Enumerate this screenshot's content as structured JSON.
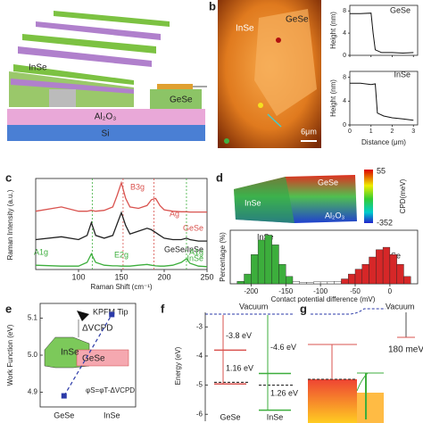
{
  "labels": {
    "b": "b",
    "c": "c",
    "d": "d",
    "e": "e",
    "f": "f",
    "g": "g"
  },
  "a": {
    "inse": "InSe",
    "gese": "GeSe",
    "al2o3": "Al₂O₃",
    "si": "Si"
  },
  "b": {
    "image": {
      "inse": "InSe",
      "gese": "GeSe",
      "scale": "6μm"
    },
    "ylabel": "Height (nm)",
    "xlabel": "Distance (μm)",
    "xlim": [
      0,
      3.2
    ],
    "xticks": [
      0,
      1,
      2,
      3
    ],
    "plots": [
      {
        "name": "GeSe",
        "x": [
          0,
          0.5,
          1.0,
          1.1,
          1.2,
          1.5,
          2,
          2.5,
          3
        ],
        "values": [
          7.5,
          7.5,
          7.6,
          4,
          1,
          0.5,
          0.5,
          0.4,
          0.5
        ],
        "ylim": [
          0,
          9
        ],
        "yticks": [
          0,
          4,
          8
        ]
      },
      {
        "name": "InSe",
        "x": [
          0,
          0.5,
          1.0,
          1.2,
          1.3,
          1.6,
          2,
          2.5,
          3
        ],
        "values": [
          7,
          7,
          6.8,
          6.9,
          2,
          1.5,
          1.2,
          1,
          0.8
        ],
        "ylim": [
          0,
          9
        ],
        "yticks": [
          0,
          4,
          8
        ]
      }
    ]
  },
  "c": {
    "ylabel": "Raman Intensity (a.u.)",
    "xlabel": "Raman Shift (cm⁻¹)",
    "xlim": [
      50,
      250
    ],
    "xticks": [
      100,
      150,
      200,
      250
    ],
    "ylim": [
      0,
      3.2
    ],
    "x": [
      50,
      80,
      100,
      110,
      115,
      120,
      130,
      140,
      145,
      150,
      155,
      160,
      170,
      180,
      185,
      190,
      195,
      200,
      210,
      220,
      226,
      230,
      240,
      250
    ],
    "series": [
      {
        "name": "GeSe",
        "color": "#d9534f",
        "values": [
          2.05,
          2.2,
          2.05,
          2.05,
          2.08,
          2.05,
          2.08,
          2.2,
          2.6,
          3.05,
          2.5,
          2.2,
          2.15,
          2.25,
          2.45,
          2.5,
          2.25,
          2.1,
          2.05,
          2.03,
          2.03,
          2.02,
          2.02,
          2.02
        ]
      },
      {
        "name": "GeSe/InSe",
        "color": "#222222",
        "values": [
          1.05,
          1.15,
          1.05,
          1.2,
          1.65,
          1.2,
          1.1,
          1.2,
          1.6,
          2.0,
          1.55,
          1.25,
          1.35,
          1.45,
          1.4,
          1.3,
          1.2,
          1.1,
          1.05,
          1.05,
          1.1,
          1.05,
          1.0,
          1.0
        ]
      },
      {
        "name": "InSe",
        "color": "#3cae3c",
        "values": [
          0.15,
          0.12,
          0.12,
          0.25,
          0.55,
          0.25,
          0.15,
          0.13,
          0.13,
          0.12,
          0.12,
          0.12,
          0.15,
          0.18,
          0.15,
          0.13,
          0.12,
          0.12,
          0.15,
          0.25,
          0.38,
          0.22,
          0.12,
          0.1
        ]
      }
    ],
    "vlines": [
      {
        "x": 152,
        "color": "#d9534f"
      },
      {
        "x": 188,
        "color": "#d9534f"
      },
      {
        "x": 116,
        "color": "#3cae3c"
      },
      {
        "x": 226,
        "color": "#3cae3c"
      }
    ],
    "peaks": {
      "b3g": "B3g",
      "ag": "Ag",
      "a1g_left": "A1g",
      "e2g": "E2g",
      "a1g_right": "A1g"
    }
  },
  "d": {
    "map": {
      "inse": "InSe",
      "gese": "GeSe",
      "al2o3": "Al₂O₃",
      "cbar_max": "55",
      "cbar_min": "-352",
      "cbar_label": "CPD(meV)"
    },
    "ylabel": "Percentage (%)",
    "xlabel": "Contact potential difference (mV)",
    "xlim": [
      -230,
      40
    ],
    "xticks": [
      -200,
      -150,
      -100,
      -50,
      0
    ],
    "ylim": [
      0,
      11
    ],
    "groups": [
      {
        "name": "InSe",
        "color": "#3cae3c",
        "bins": [
          -220,
          -210,
          -200,
          -190,
          -180,
          -170,
          -160,
          -150,
          -140
        ],
        "counts": [
          0.5,
          2,
          6,
          9,
          10,
          8,
          4,
          1.5
        ]
      },
      {
        "color": "#ffffff",
        "bins": [
          -140,
          -130,
          -120,
          -110,
          -100,
          -90,
          -80,
          -70
        ],
        "counts": [
          0.5,
          0.3,
          0.3,
          0.4,
          0.4,
          0.4,
          0.5
        ]
      },
      {
        "name": "GeSe",
        "color": "#d62728",
        "bins": [
          -70,
          -60,
          -50,
          -40,
          -30,
          -20,
          -10,
          0,
          10,
          20,
          30
        ],
        "counts": [
          1,
          2,
          3,
          4,
          5.5,
          7,
          7.5,
          6,
          4,
          1.5
        ]
      }
    ]
  },
  "e": {
    "ylabel": "Work Function (eV)",
    "ylim": [
      4.86,
      5.14
    ],
    "yticks": [
      4.9,
      {
        "value": 5,
        "label": "5.0"
      },
      5.1
    ],
    "categories": [
      "GeSe",
      "InSe"
    ],
    "values": [
      4.89,
      5.11
    ],
    "color": "#2b3aa8",
    "texts": {
      "tip": "KPFM Tip",
      "dv": "ΔVCPD",
      "inse": "InSe",
      "gese": "GeSe",
      "eq": "φS=φT-ΔVCPD"
    }
  },
  "f": {
    "ylabel": "Energy (eV)",
    "ylim": [
      -6.3,
      -2.5
    ],
    "yticks": [
      -3,
      -4,
      -5,
      -6
    ],
    "vacuum": "Vacuum",
    "materials": [
      {
        "name": "GeSe",
        "color": "#d9534f",
        "cb": -3.8,
        "vb": -4.96,
        "fermi": -4.9,
        "cb_label": "-3.8 eV",
        "gap_label": "1.16 eV"
      },
      {
        "name": "InSe",
        "color": "#3cae3c",
        "cb": -4.6,
        "vb": -5.86,
        "fermi": -5.0,
        "cb_label": "-4.6 eV",
        "gap_label": "1.26 eV"
      }
    ]
  },
  "g": {
    "vacuum": "Vacuum",
    "offset": "180 meV"
  }
}
